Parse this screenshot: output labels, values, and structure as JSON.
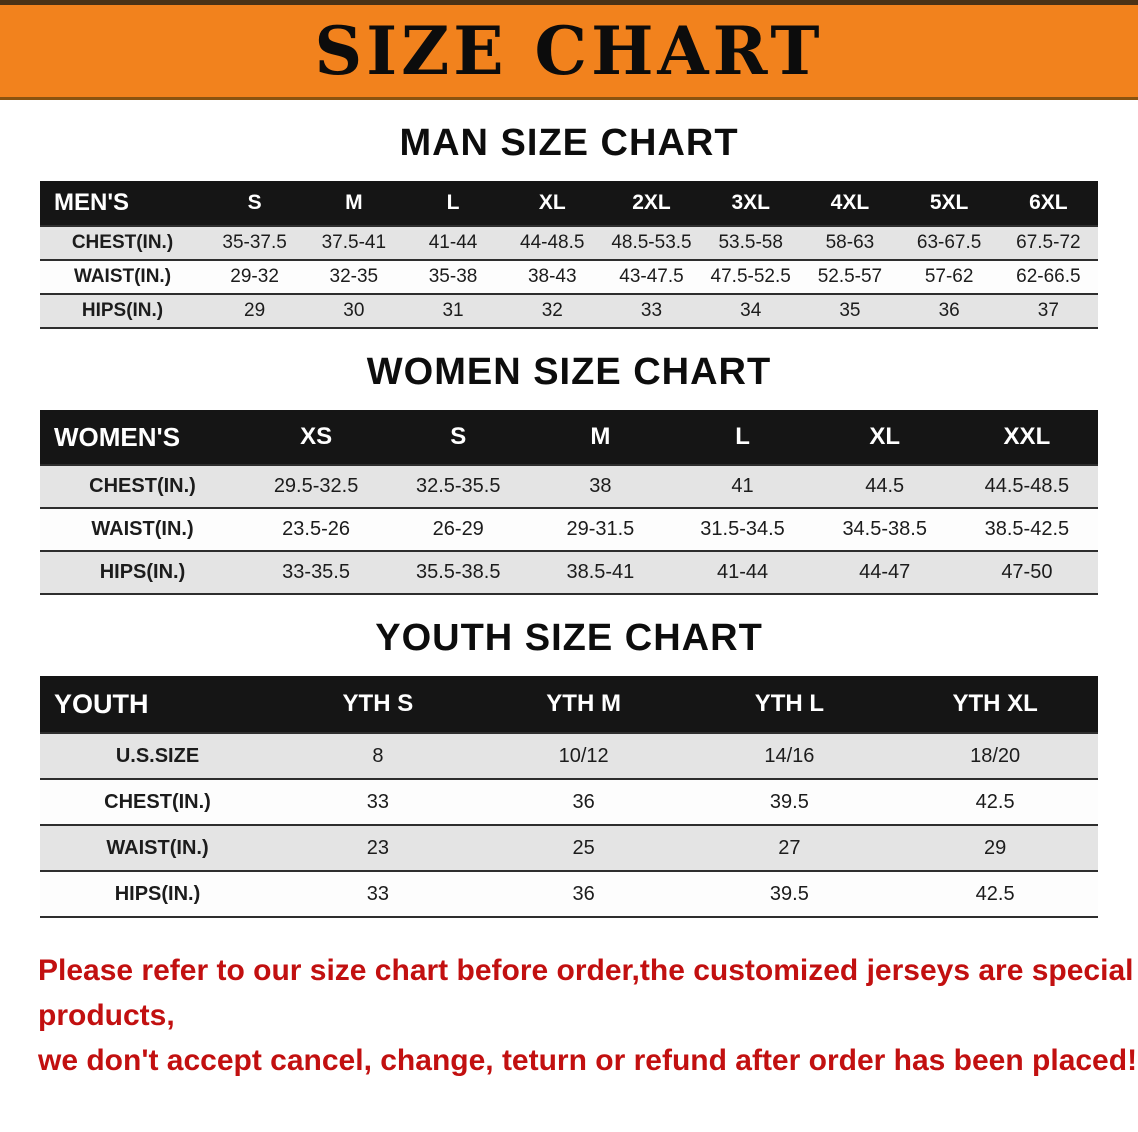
{
  "banner": {
    "title": "SIZE CHART"
  },
  "colors": {
    "banner_bg": "#f2821d",
    "footer_text": "#c21010",
    "header_bg": "#151515",
    "row_shade": "#e4e4e4"
  },
  "chart_data": [
    {
      "type": "table",
      "title": "MAN SIZE CHART",
      "columns": [
        "MEN'S",
        "S",
        "M",
        "L",
        "XL",
        "2XL",
        "3XL",
        "4XL",
        "5XL",
        "6XL"
      ],
      "rows": [
        [
          "CHEST(IN.)",
          "35-37.5",
          "37.5-41",
          "41-44",
          "44-48.5",
          "48.5-53.5",
          "53.5-58",
          "58-63",
          "63-67.5",
          "67.5-72"
        ],
        [
          "WAIST(IN.)",
          "29-32",
          "32-35",
          "35-38",
          "38-43",
          "43-47.5",
          "47.5-52.5",
          "52.5-57",
          "57-62",
          "62-66.5"
        ],
        [
          "HIPS(IN.)",
          "29",
          "30",
          "31",
          "32",
          "33",
          "34",
          "35",
          "36",
          "37"
        ]
      ]
    },
    {
      "type": "table",
      "title": "WOMEN SIZE CHART",
      "columns": [
        "WOMEN'S",
        "XS",
        "S",
        "M",
        "L",
        "XL",
        "XXL"
      ],
      "rows": [
        [
          "CHEST(IN.)",
          "29.5-32.5",
          "32.5-35.5",
          "38",
          "41",
          "44.5",
          "44.5-48.5"
        ],
        [
          "WAIST(IN.)",
          "23.5-26",
          "26-29",
          "29-31.5",
          "31.5-34.5",
          "34.5-38.5",
          "38.5-42.5"
        ],
        [
          "HIPS(IN.)",
          "33-35.5",
          "35.5-38.5",
          "38.5-41",
          "41-44",
          "44-47",
          "47-50"
        ]
      ]
    },
    {
      "type": "table",
      "title": "YOUTH SIZE CHART",
      "columns": [
        "YOUTH",
        "YTH S",
        "YTH M",
        "YTH L",
        "YTH XL"
      ],
      "rows": [
        [
          "U.S.SIZE",
          "8",
          "10/12",
          "14/16",
          "18/20"
        ],
        [
          "CHEST(IN.)",
          "33",
          "36",
          "39.5",
          "42.5"
        ],
        [
          "WAIST(IN.)",
          "23",
          "25",
          "27",
          "29"
        ],
        [
          "HIPS(IN.)",
          "33",
          "36",
          "39.5",
          "42.5"
        ]
      ]
    }
  ],
  "footer": {
    "line1": "Please refer to our size chart before order,the customized jerseys are special products,",
    "line2": "we don't accept cancel, change, teturn or refund after order has been placed!"
  }
}
